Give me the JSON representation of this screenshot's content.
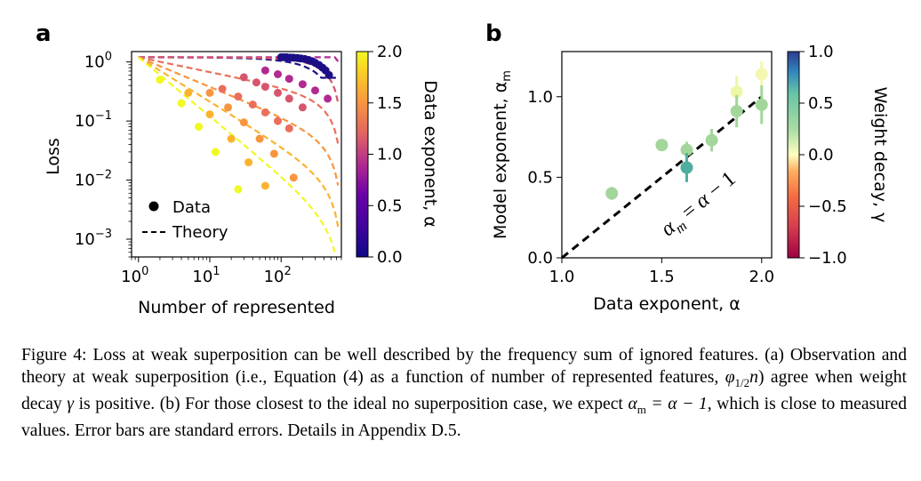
{
  "panel_labels": {
    "a": "a",
    "b": "b"
  },
  "chart_data": [
    {
      "type": "scatter",
      "title": "",
      "xlabel": "Number of represented",
      "ylabel": "Loss",
      "xscale": "log",
      "yscale": "log",
      "xlim": [
        0.8,
        700
      ],
      "ylim": [
        0.0005,
        1.5
      ],
      "xtick_labels": [
        {
          "base": "10",
          "exp": "0"
        },
        {
          "base": "10",
          "exp": "1"
        },
        {
          "base": "10",
          "exp": "2"
        }
      ],
      "ytick_labels": [
        {
          "base": "10",
          "exp": "0"
        },
        {
          "base": "10",
          "exp": "−1"
        },
        {
          "base": "10",
          "exp": "−2"
        },
        {
          "base": "10",
          "exp": "−3"
        }
      ],
      "legend": {
        "position": "bottom-left",
        "entries": [
          "Data",
          "Theory"
        ]
      },
      "colorbar": {
        "label": "Data exponent, α",
        "min": 0.0,
        "max": 2.0,
        "ticks": [
          "0.0",
          "0.5",
          "1.0",
          "1.5",
          "2.0"
        ],
        "colormap": "plasma"
      },
      "series": [
        {
          "alpha": 0.25,
          "color": "#1c0f86",
          "theory_x": [
            1,
            600
          ],
          "data_x": [
            100,
            110,
            120,
            135,
            150,
            170,
            190,
            215,
            240,
            270,
            300,
            340,
            380,
            420,
            470
          ],
          "data_y": [
            1.2,
            1.2,
            1.2,
            1.19,
            1.18,
            1.17,
            1.15,
            1.12,
            1.08,
            1.03,
            0.97,
            0.89,
            0.8,
            0.72,
            0.6
          ]
        },
        {
          "alpha": 0.75,
          "color": "#b12a90",
          "theory_x": [
            1,
            600
          ],
          "data_x": [
            60,
            90,
            130,
            200,
            300,
            450
          ],
          "data_y": [
            0.72,
            0.62,
            0.52,
            0.42,
            0.33,
            0.24
          ]
        },
        {
          "alpha": 1.0,
          "color": "#d6556d",
          "theory_x": [
            1,
            600
          ],
          "data_x": [
            30,
            45,
            60,
            90,
            130,
            200
          ],
          "data_y": [
            0.55,
            0.45,
            0.38,
            0.3,
            0.24,
            0.17
          ]
        },
        {
          "alpha": 1.25,
          "color": "#ea6f5a",
          "theory_x": [
            1,
            600
          ],
          "data_x": [
            15,
            25,
            40,
            60,
            90,
            130
          ],
          "data_y": [
            0.35,
            0.26,
            0.19,
            0.14,
            0.1,
            0.075
          ]
        },
        {
          "alpha": 1.5,
          "color": "#f89540",
          "theory_x": [
            1,
            600
          ],
          "data_x": [
            10,
            18,
            30,
            50,
            80,
            150
          ],
          "data_y": [
            0.3,
            0.17,
            0.095,
            0.05,
            0.028,
            0.011
          ]
        },
        {
          "alpha": 1.75,
          "color": "#fbb32f",
          "theory_x": [
            1,
            600
          ],
          "data_x": [
            5,
            10,
            20,
            35,
            60
          ],
          "data_y": [
            0.3,
            0.13,
            0.05,
            0.02,
            0.008
          ]
        },
        {
          "alpha": 2.0,
          "color": "#f0f921",
          "theory_x": [
            1,
            600
          ],
          "data_x": [
            2,
            4,
            7,
            12,
            25
          ],
          "data_y": [
            0.5,
            0.2,
            0.08,
            0.03,
            0.007
          ]
        }
      ]
    },
    {
      "type": "scatter",
      "title": "",
      "xlabel": "Data exponent, α",
      "ylabel": "Model exponent, α_m",
      "xlim": [
        1.0,
        2.05
      ],
      "ylim": [
        0.0,
        1.28
      ],
      "xticks": [
        "1.0",
        "1.5",
        "2.0"
      ],
      "yticks": [
        "0.0",
        "0.5",
        "1.0"
      ],
      "reference_line": {
        "label": "α_m = α − 1",
        "slope": 1,
        "intercept": -1,
        "style": "dashed"
      },
      "colorbar": {
        "label": "Weight decay, γ",
        "min": -1.0,
        "max": 1.0,
        "ticks": [
          "−1.0",
          "−0.5",
          "0.0",
          "0.5",
          "1.0"
        ],
        "colormap": "Spectral"
      },
      "points": [
        {
          "x": 1.25,
          "y": 0.4,
          "err": 0.04,
          "gamma": 0.35,
          "color": "#a3d69b"
        },
        {
          "x": 1.5,
          "y": 0.7,
          "err": 0.03,
          "gamma": 0.35,
          "color": "#a3d69b"
        },
        {
          "x": 1.625,
          "y": 0.67,
          "err": 0.05,
          "gamma": 0.35,
          "color": "#a3d69b"
        },
        {
          "x": 1.625,
          "y": 0.56,
          "err": 0.09,
          "gamma": 0.75,
          "color": "#4fae9d"
        },
        {
          "x": 1.75,
          "y": 0.73,
          "err": 0.07,
          "gamma": 0.35,
          "color": "#a3d69b"
        },
        {
          "x": 1.875,
          "y": 1.03,
          "err": 0.1,
          "gamma": 0.05,
          "color": "#eef7a8"
        },
        {
          "x": 1.875,
          "y": 0.91,
          "err": 0.1,
          "gamma": 0.35,
          "color": "#a3d69b"
        },
        {
          "x": 2.0,
          "y": 1.14,
          "err": 0.08,
          "gamma": 0.0,
          "color": "#f3f7b1"
        },
        {
          "x": 2.0,
          "y": 0.95,
          "err": 0.12,
          "gamma": 0.35,
          "color": "#a3d69b"
        }
      ]
    }
  ],
  "caption": {
    "lead": "Figure 4: Loss at weak superposition can be well described by the frequency sum of ignored features. (a) Observation and theory at weak superposition (i.e., Equation (4) as a function of number of represented features, ",
    "phi": "φ",
    "phi_sub": "1/2",
    "n": "n",
    "mid": ") agree when weight decay ",
    "gamma": "γ",
    "mid2": " is positive. (b) For those closest to the ideal no superposition case, we expect ",
    "eq": "α",
    "eq_sub": "m",
    "eq_rest": " = α − 1",
    "tail": ", which is close to measured values. Error bars are standard errors. Details in Appendix D.5."
  }
}
